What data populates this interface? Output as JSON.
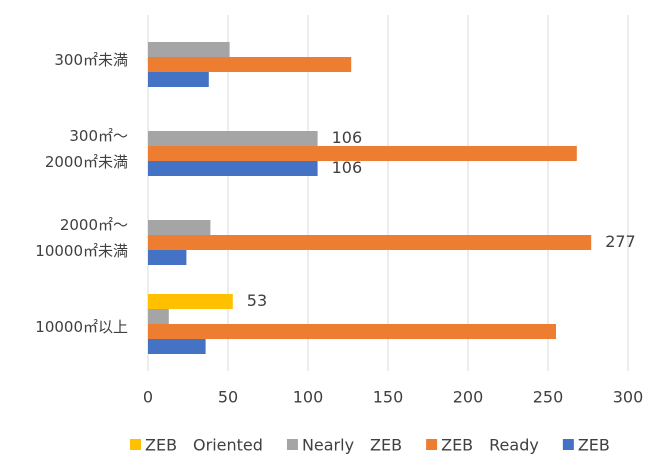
{
  "chart_data": {
    "type": "bar",
    "orientation": "horizontal",
    "categories": [
      "300㎡未満",
      "300㎡～\n2000㎡未満",
      "2000㎡～\n10000㎡未満",
      "10000㎡以上"
    ],
    "series": [
      {
        "name": "ZEB　Oriented",
        "color": "#ffc000",
        "values": [
          null,
          null,
          null,
          53
        ],
        "value_labels": [
          null,
          null,
          null,
          "53"
        ]
      },
      {
        "name": "Nearly　ZEB",
        "color": "#a5a5a5",
        "values": [
          51,
          106,
          39,
          13
        ],
        "value_labels": [
          null,
          "106",
          null,
          null
        ]
      },
      {
        "name": "ZEB　Ready",
        "color": "#ed7d31",
        "values": [
          127,
          268,
          277,
          255
        ],
        "value_labels": [
          null,
          null,
          "277",
          null
        ]
      },
      {
        "name": "ZEB",
        "color": "#4472c4",
        "values": [
          38,
          106,
          24,
          36
        ],
        "value_labels": [
          null,
          "106",
          null,
          null
        ]
      }
    ],
    "xlim": [
      0,
      300
    ],
    "xticks": [
      0,
      50,
      100,
      150,
      200,
      250,
      300
    ],
    "grid": true,
    "legend": "bottom"
  }
}
